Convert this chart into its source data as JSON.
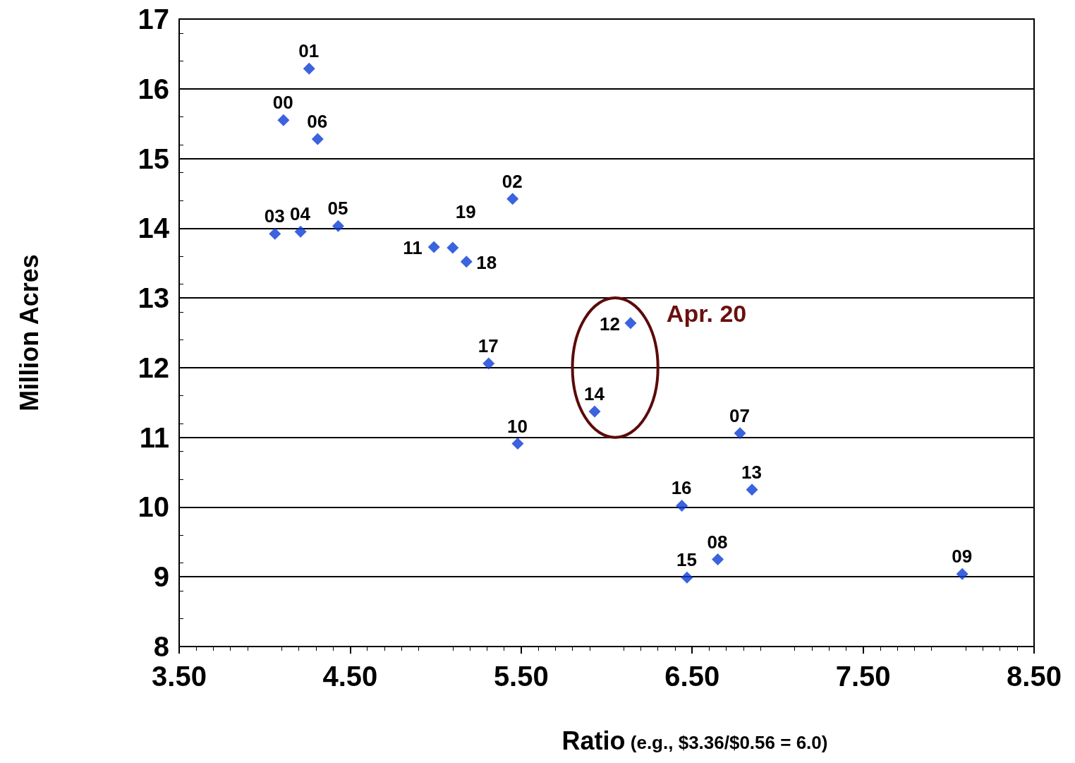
{
  "chart_data": {
    "type": "scatter",
    "xlabel": "Ratio (e.g., $3.36/$0.56 = 6.0)",
    "ylabel": "Million Acres",
    "x": [
      4.26,
      4.11,
      4.31,
      5.45,
      4.06,
      4.21,
      4.43,
      4.99,
      5.1,
      5.18,
      6.14,
      5.31,
      5.93,
      5.48,
      6.78,
      6.85,
      6.44,
      6.65,
      6.47,
      8.08
    ],
    "values": [
      16.29,
      15.55,
      15.28,
      14.42,
      13.92,
      13.95,
      14.03,
      13.73,
      13.72,
      13.52,
      12.64,
      12.06,
      11.37,
      10.91,
      11.06,
      10.25,
      10.02,
      9.25,
      8.99,
      9.04
    ],
    "color": "#0a3cd6",
    "marker": "diamond",
    "xlim": [
      3.5,
      8.5
    ],
    "xticks": [
      {
        "value": 3.5,
        "label": "3.50"
      },
      {
        "value": 4.5,
        "label": "4.50"
      },
      {
        "value": 5.5,
        "label": "5.50"
      },
      {
        "value": 6.5,
        "label": "6.50"
      },
      {
        "value": 7.5,
        "label": "7.50"
      },
      {
        "value": 8.5,
        "label": "8.50"
      }
    ],
    "ylim": [
      8,
      17
    ],
    "yticks": [
      8,
      9,
      10,
      11,
      12,
      13,
      14,
      15,
      16,
      17
    ],
    "grid": "y",
    "annotations": [
      {
        "text": "01",
        "x": 4.26,
        "y": 16.29
      },
      {
        "text": "00",
        "x": 4.11,
        "y": 15.55
      },
      {
        "text": "06",
        "x": 4.31,
        "y": 15.28
      },
      {
        "text": "02",
        "x": 5.45,
        "y": 14.42
      },
      {
        "text": "03",
        "x": 4.06,
        "y": 13.92
      },
      {
        "text": "04",
        "x": 4.21,
        "y": 13.95
      },
      {
        "text": "05",
        "x": 4.43,
        "y": 14.03
      },
      {
        "text": "11",
        "x": 4.99,
        "y": 13.73
      },
      {
        "text": "19",
        "x": 5.1,
        "y": 13.72
      },
      {
        "text": "18",
        "x": 5.18,
        "y": 13.52
      },
      {
        "text": "12",
        "x": 6.14,
        "y": 12.64
      },
      {
        "text": "17",
        "x": 5.31,
        "y": 12.06
      },
      {
        "text": "14",
        "x": 5.93,
        "y": 11.37
      },
      {
        "text": "10",
        "x": 5.48,
        "y": 10.91
      },
      {
        "text": "07",
        "x": 6.78,
        "y": 11.06
      },
      {
        "text": "13",
        "x": 6.85,
        "y": 10.25
      },
      {
        "text": "16",
        "x": 6.44,
        "y": 10.02
      },
      {
        "text": "08",
        "x": 6.65,
        "y": 9.25
      },
      {
        "text": "15",
        "x": 6.47,
        "y": 8.99
      },
      {
        "text": "09",
        "x": 8.08,
        "y": 9.04
      },
      "Apr. 20"
    ]
  }
}
